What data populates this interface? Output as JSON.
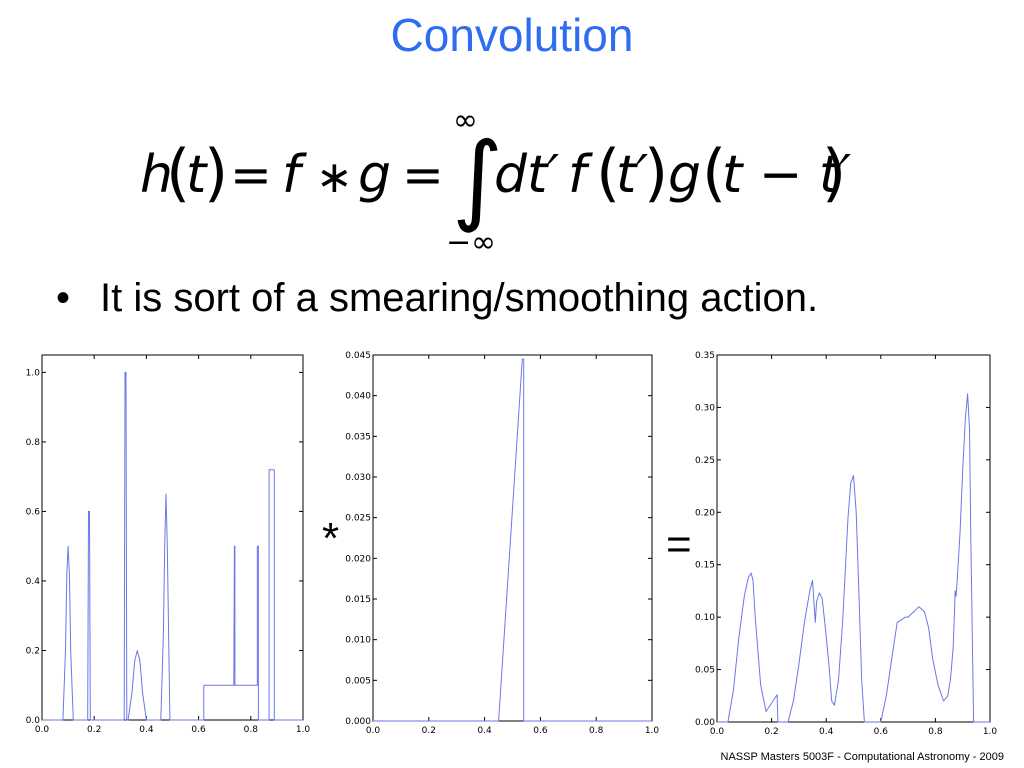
{
  "title": "Convolution",
  "formula": {
    "lhs": "h",
    "lhs_arg": "t",
    "equals1": "=",
    "f": "f",
    "star": "∗",
    "g": "g",
    "equals2": "=",
    "integral": "∫",
    "upper_limit": "∞",
    "lower_limit": "−∞",
    "dt": "dt′",
    "f2": "f",
    "f2_arg": "t′",
    "g2": "g",
    "g2_arg": "t − t′"
  },
  "bullet": {
    "marker": "•",
    "text": "It is sort of a smearing/smoothing action."
  },
  "operators": {
    "convolve": "*",
    "equals": "="
  },
  "footer": "NASSP Masters 5003F - Computational Astronomy - 2009",
  "line_color": "#6b76e8",
  "chart_data": [
    {
      "type": "line",
      "xlim": [
        0.0,
        1.0
      ],
      "ylim": [
        0.0,
        1.05
      ],
      "xticks": [
        0.0,
        0.2,
        0.4,
        0.6,
        0.8,
        1.0
      ],
      "yticks": [
        0.0,
        0.2,
        0.4,
        0.6,
        0.8,
        1.0
      ],
      "xtick_labels": [
        "0.0",
        "0.2",
        "0.4",
        "0.6",
        "0.8",
        "1.0"
      ],
      "ytick_labels": [
        "0.0",
        "0.2",
        "0.4",
        "0.6",
        "0.8",
        "1.0"
      ],
      "grid": false,
      "x": [
        0.0,
        0.08,
        0.09,
        0.095,
        0.1,
        0.105,
        0.11,
        0.12,
        0.175,
        0.178,
        0.18,
        0.182,
        0.185,
        0.315,
        0.318,
        0.32,
        0.322,
        0.325,
        0.33,
        0.345,
        0.355,
        0.365,
        0.375,
        0.385,
        0.4,
        0.455,
        0.465,
        0.47,
        0.475,
        0.48,
        0.485,
        0.49,
        0.5,
        0.62,
        0.62,
        0.735,
        0.737,
        0.739,
        0.739,
        0.74,
        0.825,
        0.825,
        0.827,
        0.829,
        0.829,
        0.86,
        0.87,
        0.87,
        0.89,
        0.89,
        0.905,
        1.0
      ],
      "y": [
        0.0,
        0.0,
        0.2,
        0.42,
        0.5,
        0.42,
        0.2,
        0.0,
        0.0,
        0.6,
        0.6,
        0.6,
        0.0,
        0.0,
        1.0,
        1.0,
        1.0,
        0.0,
        0.0,
        0.08,
        0.17,
        0.2,
        0.17,
        0.08,
        0.0,
        0.0,
        0.25,
        0.5,
        0.65,
        0.5,
        0.25,
        0.0,
        0.0,
        0.0,
        0.1,
        0.1,
        0.5,
        0.5,
        0.1,
        0.1,
        0.1,
        0.5,
        0.5,
        0.5,
        0.0,
        0.0,
        0.0,
        0.72,
        0.72,
        0.0,
        0.0,
        0.0
      ]
    },
    {
      "type": "line",
      "xlim": [
        0.0,
        1.0
      ],
      "ylim": [
        0.0,
        0.045
      ],
      "xticks": [
        0.0,
        0.2,
        0.4,
        0.6,
        0.8,
        1.0
      ],
      "yticks": [
        0.0,
        0.005,
        0.01,
        0.015,
        0.02,
        0.025,
        0.03,
        0.035,
        0.04,
        0.045
      ],
      "xtick_labels": [
        "0.0",
        "0.2",
        "0.4",
        "0.6",
        "0.8",
        "1.0"
      ],
      "ytick_labels": [
        "0.000",
        "0.005",
        "0.010",
        "0.015",
        "0.020",
        "0.025",
        "0.030",
        "0.035",
        "0.040",
        "0.045"
      ],
      "grid": false,
      "x": [
        0.0,
        0.45,
        0.535,
        0.54,
        0.54,
        1.0
      ],
      "y": [
        0.0,
        0.0,
        0.0445,
        0.0445,
        0.0,
        0.0
      ]
    },
    {
      "type": "line",
      "xlim": [
        0.0,
        1.0
      ],
      "ylim": [
        0.0,
        0.35
      ],
      "xticks": [
        0.0,
        0.2,
        0.4,
        0.6,
        0.8,
        1.0
      ],
      "yticks": [
        0.0,
        0.05,
        0.1,
        0.15,
        0.2,
        0.25,
        0.3,
        0.35
      ],
      "xtick_labels": [
        "0.0",
        "0.2",
        "0.4",
        "0.6",
        "0.8",
        "1.0"
      ],
      "ytick_labels": [
        "0.00",
        "0.05",
        "0.10",
        "0.15",
        "0.20",
        "0.25",
        "0.30",
        "0.35"
      ],
      "grid": false,
      "x": [
        0.0,
        0.04,
        0.06,
        0.08,
        0.1,
        0.115,
        0.125,
        0.132,
        0.14,
        0.16,
        0.18,
        0.2,
        0.22,
        0.223,
        0.26,
        0.28,
        0.3,
        0.32,
        0.34,
        0.35,
        0.36,
        0.365,
        0.375,
        0.385,
        0.395,
        0.41,
        0.42,
        0.43,
        0.445,
        0.46,
        0.47,
        0.48,
        0.49,
        0.5,
        0.51,
        0.52,
        0.53,
        0.54,
        0.58,
        0.6,
        0.62,
        0.64,
        0.66,
        0.69,
        0.7,
        0.72,
        0.74,
        0.76,
        0.775,
        0.79,
        0.81,
        0.83,
        0.845,
        0.855,
        0.865,
        0.87,
        0.872,
        0.876,
        0.88,
        0.89,
        0.9,
        0.91,
        0.918,
        0.925,
        0.93,
        0.94,
        1.0
      ],
      "y": [
        0.0,
        0.0,
        0.03,
        0.08,
        0.12,
        0.138,
        0.142,
        0.135,
        0.1,
        0.035,
        0.01,
        0.018,
        0.026,
        0.0,
        0.0,
        0.02,
        0.055,
        0.095,
        0.125,
        0.135,
        0.095,
        0.115,
        0.123,
        0.118,
        0.095,
        0.055,
        0.02,
        0.016,
        0.04,
        0.095,
        0.145,
        0.195,
        0.228,
        0.235,
        0.2,
        0.12,
        0.04,
        0.0,
        0.0,
        0.0,
        0.025,
        0.06,
        0.095,
        0.1,
        0.1,
        0.105,
        0.11,
        0.105,
        0.09,
        0.06,
        0.035,
        0.02,
        0.025,
        0.04,
        0.07,
        0.105,
        0.125,
        0.12,
        0.135,
        0.18,
        0.24,
        0.29,
        0.313,
        0.28,
        0.17,
        0.0,
        0.0
      ]
    }
  ]
}
